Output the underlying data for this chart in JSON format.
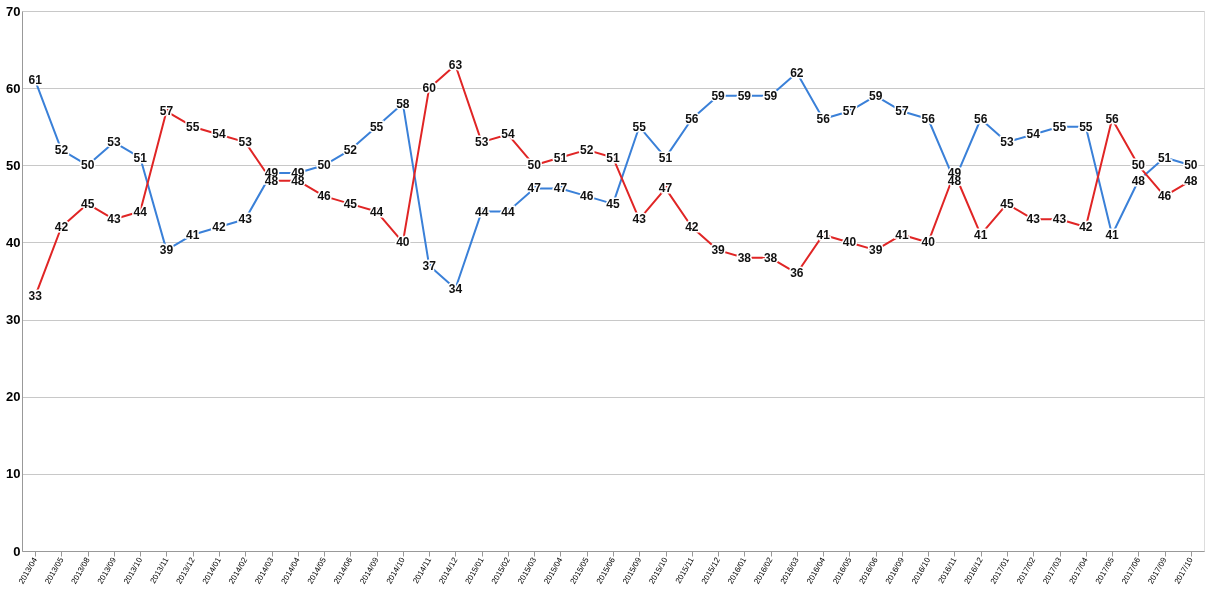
{
  "chart_data": {
    "type": "line",
    "categories": [
      "2013/04",
      "2013/05",
      "2013/08",
      "2013/09",
      "2013/10",
      "2013/11",
      "2013/12",
      "2014/01",
      "2014/02",
      "2014/03",
      "2014/04",
      "2014/05",
      "2014/06",
      "2014/09",
      "2014/10",
      "2014/11",
      "2014/12",
      "2015/01",
      "2015/02",
      "2015/03",
      "2015/04",
      "2015/05",
      "2015/06",
      "2015/09",
      "2015/10",
      "2015/11",
      "2015/12",
      "2016/01",
      "2016/02",
      "2016/03",
      "2016/04",
      "2016/05",
      "2016/06",
      "2016/09",
      "2016/10",
      "2016/11",
      "2016/12",
      "2017/01",
      "2017/02",
      "2017/03",
      "2017/04",
      "2017/05",
      "2017/06",
      "2017/09",
      "2017/10"
    ],
    "series": [
      {
        "color": "#3a80d8",
        "values": [
          61,
          52,
          50,
          53,
          51,
          39,
          41,
          42,
          43,
          49,
          49,
          50,
          52,
          55,
          58,
          37,
          34,
          44,
          44,
          47,
          47,
          46,
          45,
          55,
          51,
          56,
          59,
          59,
          59,
          62,
          56,
          57,
          59,
          57,
          56,
          48,
          56,
          53,
          54,
          55,
          55,
          41,
          48,
          51,
          50
        ]
      },
      {
        "color": "#e02525",
        "values": [
          33,
          42,
          45,
          43,
          44,
          57,
          55,
          54,
          53,
          48,
          48,
          46,
          45,
          44,
          40,
          60,
          63,
          53,
          54,
          50,
          51,
          52,
          51,
          43,
          47,
          42,
          39,
          38,
          38,
          36,
          41,
          40,
          39,
          41,
          40,
          49,
          41,
          45,
          43,
          43,
          42,
          56,
          50,
          46,
          48
        ]
      }
    ],
    "ylim": [
      0,
      70
    ],
    "yticks": [
      0,
      10,
      20,
      30,
      40,
      50,
      60,
      70
    ],
    "grid": "y",
    "legend": false,
    "marker": "square",
    "line_style": "solid",
    "data_labels": true
  }
}
